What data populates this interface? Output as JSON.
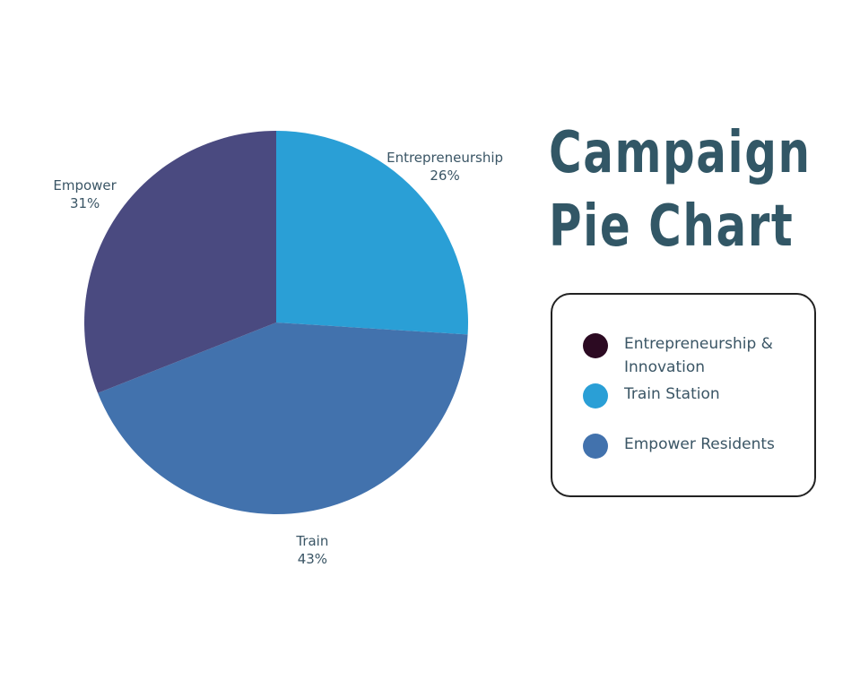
{
  "chart_data": {
    "type": "pie",
    "title": [
      "Campaign",
      "Pie Chart"
    ],
    "slices": [
      {
        "name": "Entrepreneurship",
        "value": 26,
        "label": "26%",
        "color": "#2a9fd6"
      },
      {
        "name": "Train",
        "value": 43,
        "label": "43%",
        "color": "#4272ad"
      },
      {
        "name": "Empower",
        "value": 31,
        "label": "31%",
        "color": "#4a4a80"
      }
    ],
    "legend": {
      "placement": "right",
      "entries": [
        {
          "label": "Entrepreneurship & Innovation",
          "color": "#2c0a22"
        },
        {
          "label": "Train Station",
          "color": "#2a9fd6"
        },
        {
          "label": "Empower Residents",
          "color": "#4272ad"
        }
      ]
    }
  }
}
